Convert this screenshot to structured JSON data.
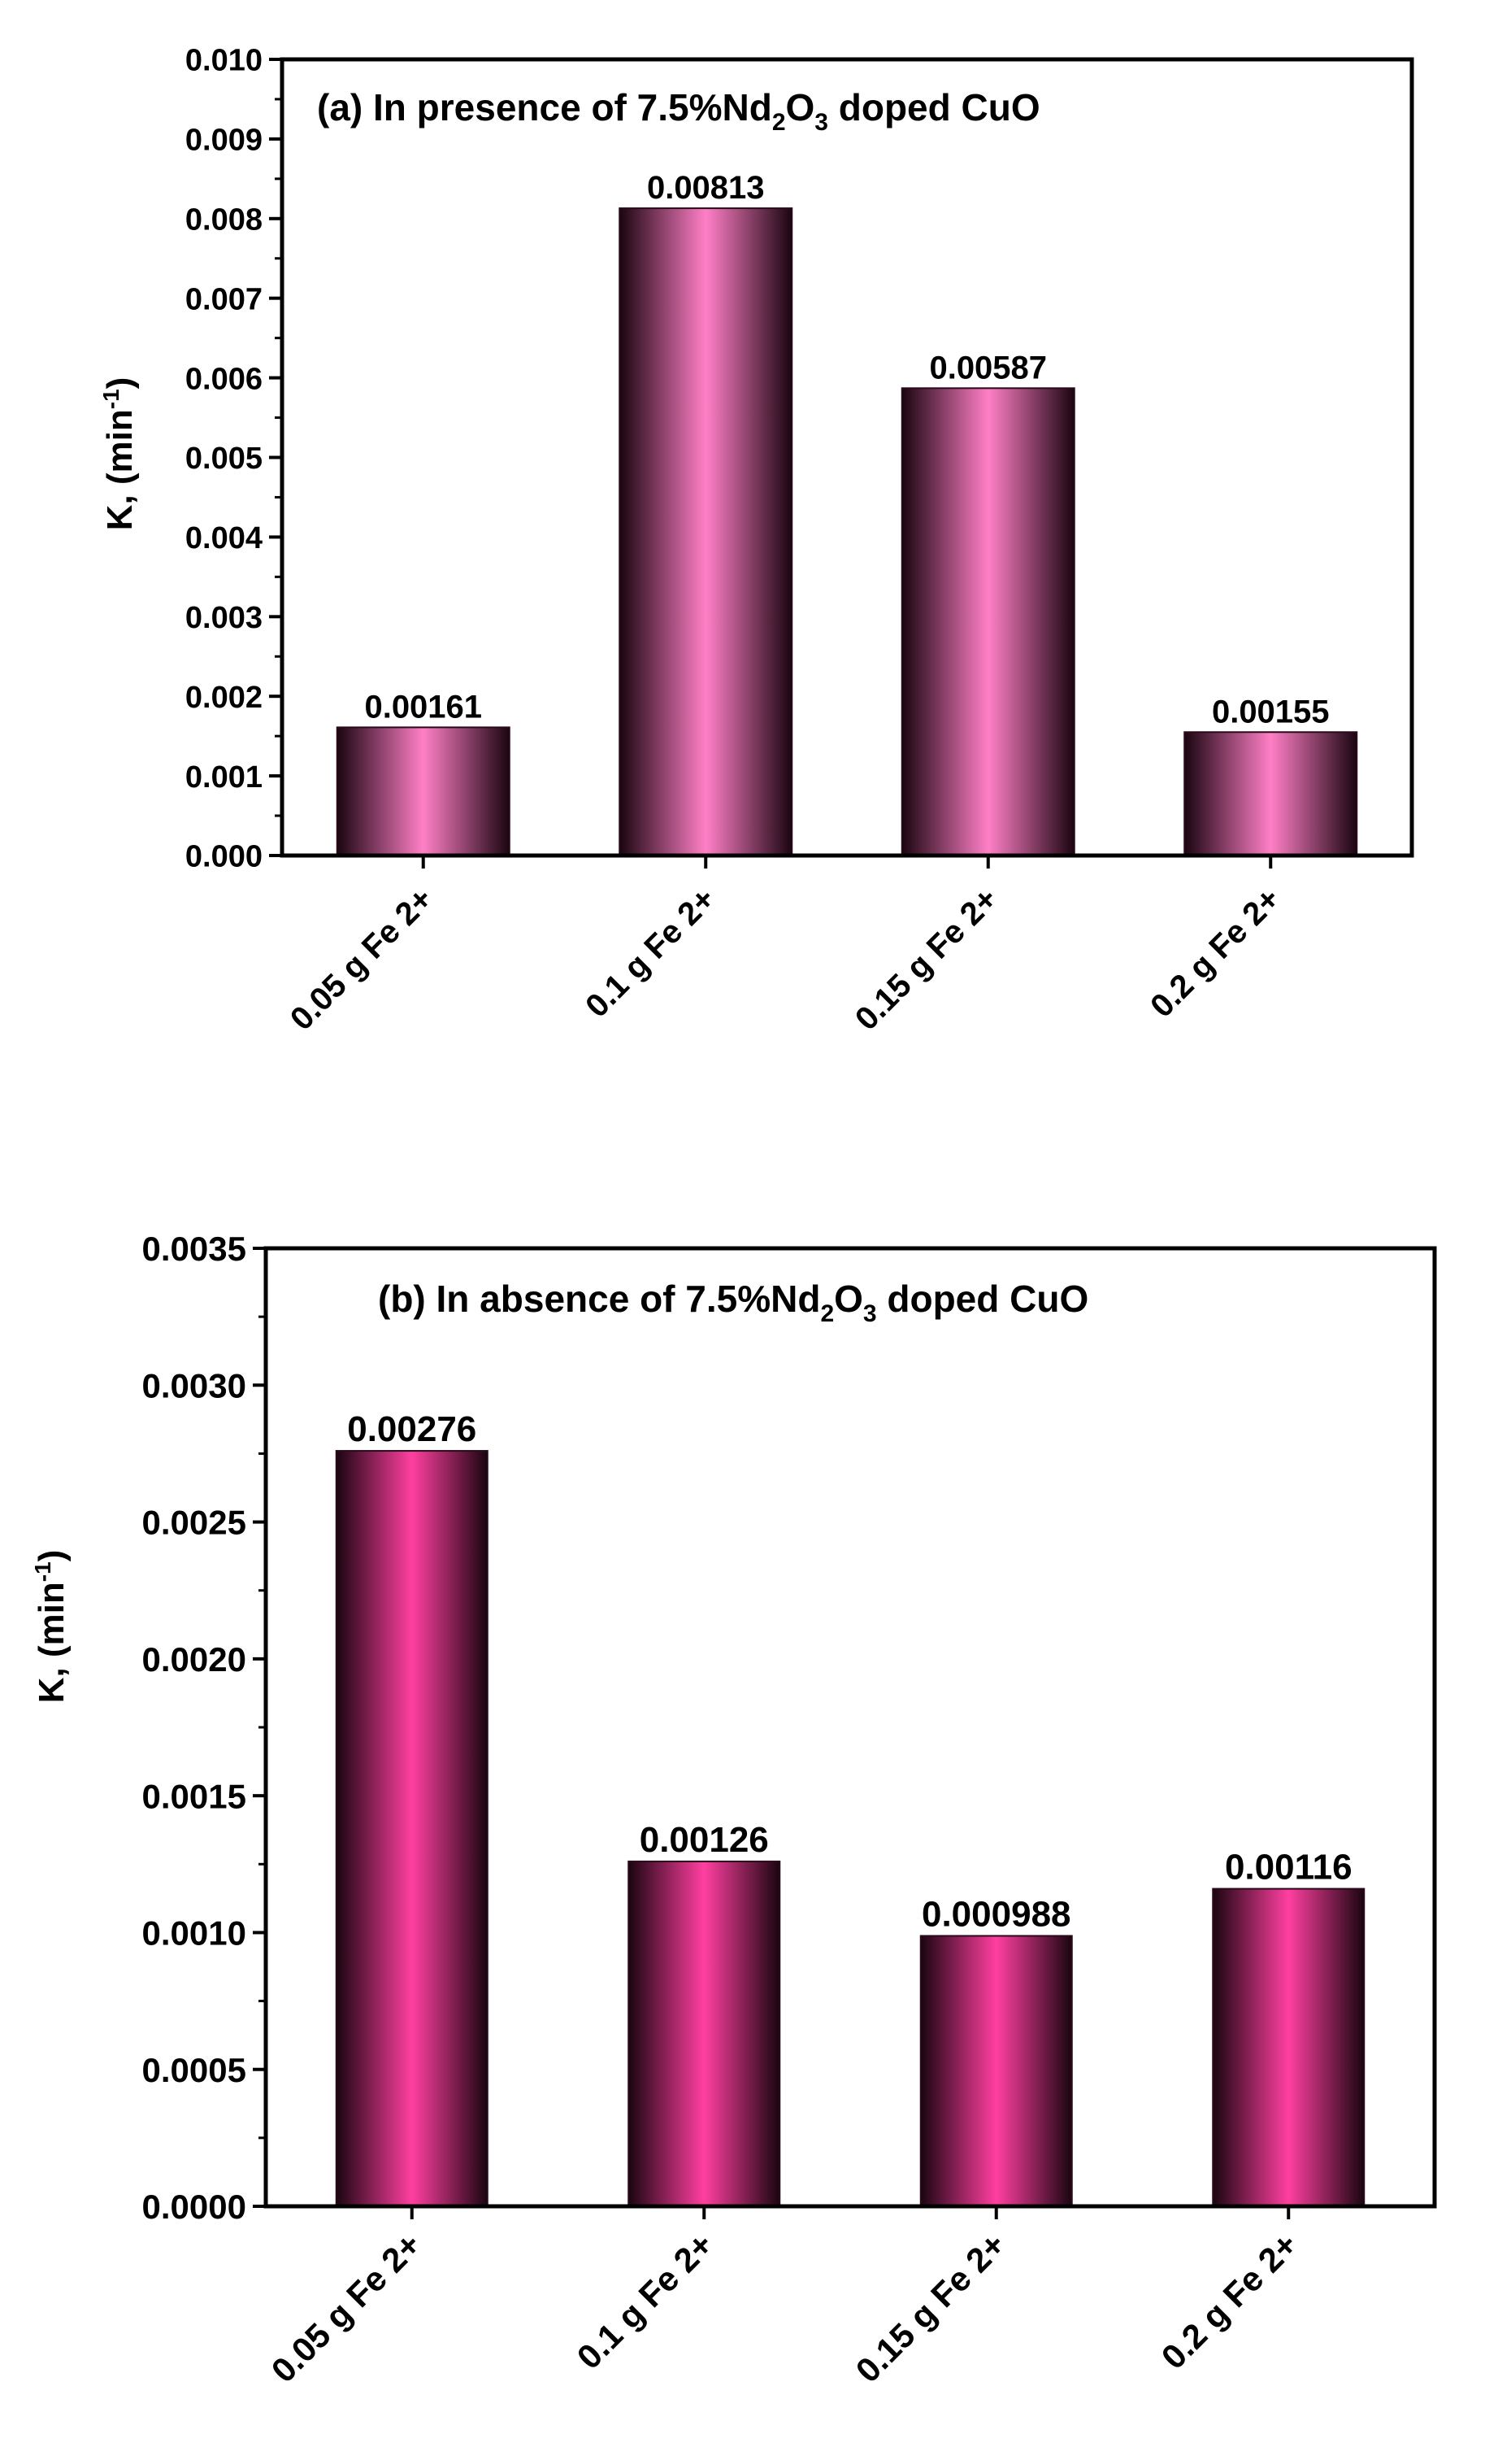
{
  "chart_data": [
    {
      "type": "bar",
      "title": "(a) In presence of 7.5%Nd2O3 doped CuO",
      "title_parts": {
        "prefix": "(a) In presence of 7.5%Nd",
        "sub1": "2",
        "mid": "O",
        "sub2": "3",
        "suffix": " doped CuO"
      },
      "ylabel": "K, (min-1)",
      "ylabel_parts": {
        "main": "K, (min",
        "sup": "-1",
        "close": ")"
      },
      "xlabel": "",
      "categories": [
        "0.05 g  Fe 2+",
        "0.1 g  Fe 2+",
        "0.15 g  Fe 2+",
        "0.2 g  Fe 2+"
      ],
      "values": [
        0.00161,
        0.00813,
        0.00587,
        0.00155
      ],
      "data_labels": [
        "0.00161",
        "0.00813",
        "0.00587",
        "0.00155"
      ],
      "ylim": [
        0,
        0.01
      ],
      "yticks": [
        0.0,
        0.001,
        0.002,
        0.003,
        0.004,
        0.005,
        0.006,
        0.007,
        0.008,
        0.009,
        0.01
      ],
      "ytick_labels": [
        "0.000",
        "0.001",
        "0.002",
        "0.003",
        "0.004",
        "0.005",
        "0.006",
        "0.007",
        "0.008",
        "0.009",
        "0.010"
      ],
      "grid": false,
      "bar_color": "#ff7fc6",
      "bar_edge_color": "#2a0a1a"
    },
    {
      "type": "bar",
      "title": "(b) In absence of 7.5%Nd2O3 doped CuO",
      "title_parts": {
        "prefix": "(b) In absence of 7.5%Nd",
        "sub1": "2",
        "mid": "O",
        "sub2": "3",
        "suffix": " doped CuO"
      },
      "ylabel": "K, (min-1)",
      "ylabel_parts": {
        "main": "K, (min",
        "sup": "-1",
        "close": ")"
      },
      "xlabel": "",
      "categories": [
        "0.05 g Fe 2+",
        "0.1 g Fe 2+",
        "0.15 g Fe 2+",
        "0.2 g Fe 2+"
      ],
      "values": [
        0.00276,
        0.00126,
        0.000988,
        0.00116
      ],
      "data_labels": [
        "0.00276",
        "0.00126",
        "0.000988",
        "0.00116"
      ],
      "ylim": [
        0,
        0.0035
      ],
      "yticks": [
        0.0,
        0.0005,
        0.001,
        0.0015,
        0.002,
        0.0025,
        0.003,
        0.0035
      ],
      "ytick_labels": [
        "0.0000",
        "0.0005",
        "0.0010",
        "0.0015",
        "0.0020",
        "0.0025",
        "0.0030",
        "0.0035"
      ],
      "grid": false,
      "bar_color": "#ff3fa0",
      "bar_edge_color": "#2a0a1a"
    }
  ]
}
